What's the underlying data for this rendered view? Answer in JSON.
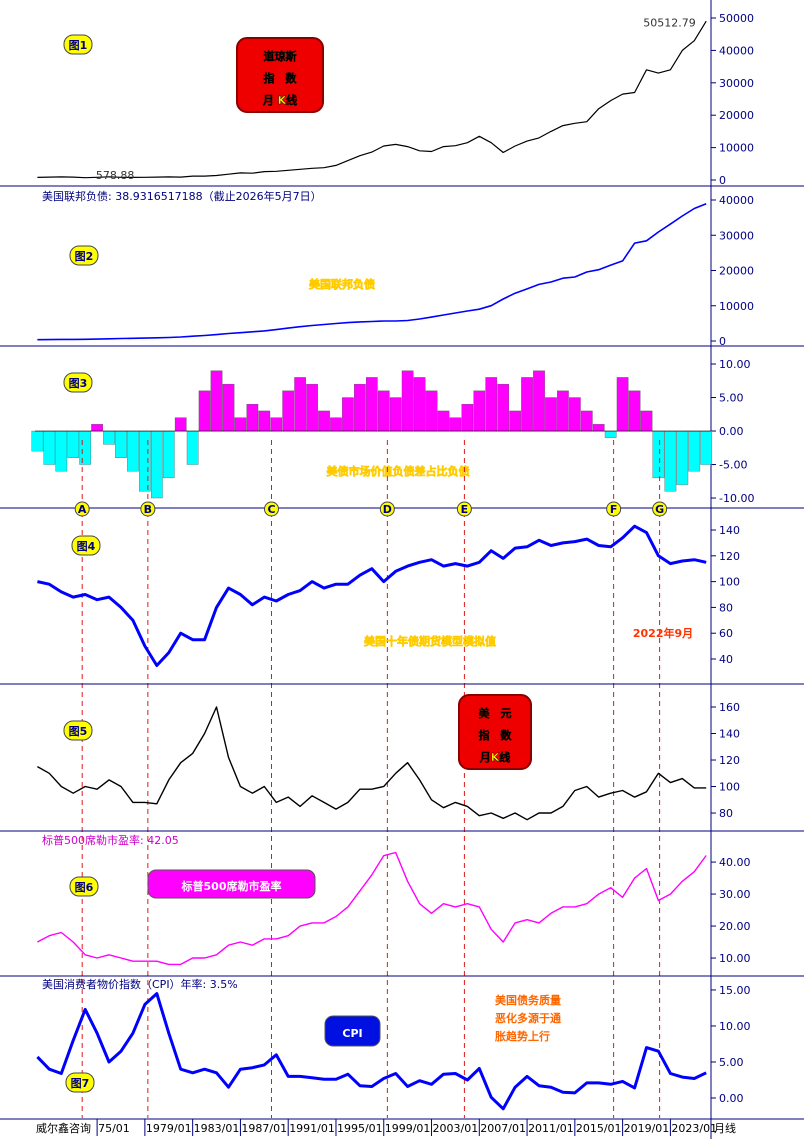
{
  "chart_data": [
    {
      "type": "line",
      "label": "图1",
      "box_lines": [
        "道琼斯",
        "指　数",
        "月 K线"
      ],
      "annotations": [
        {
          "text": "50512.79",
          "x": 2026.3,
          "y": 50512.79
        },
        {
          "text": "578.88",
          "x": 1974.9,
          "y": 578.88
        }
      ],
      "x": [
        1970,
        1971,
        1972,
        1973,
        1974,
        1975,
        1976,
        1977,
        1978,
        1979,
        1980,
        1981,
        1982,
        1983,
        1984,
        1985,
        1986,
        1987,
        1988,
        1989,
        1990,
        1991,
        1992,
        1993,
        1994,
        1995,
        1996,
        1997,
        1998,
        1999,
        2000,
        2001,
        2002,
        2003,
        2004,
        2005,
        2006,
        2007,
        2008,
        2009,
        2010,
        2011,
        2012,
        2013,
        2014,
        2015,
        2016,
        2017,
        2018,
        2019,
        2020,
        2021,
        2022,
        2023,
        2024,
        2025,
        2026
      ],
      "values": [
        800,
        890,
        950,
        900,
        700,
        850,
        980,
        850,
        820,
        840,
        900,
        950,
        900,
        1200,
        1200,
        1400,
        1800,
        2200,
        2100,
        2600,
        2700,
        3000,
        3300,
        3600,
        3800,
        4500,
        6000,
        7500,
        8600,
        10500,
        11000,
        10300,
        9000,
        8800,
        10300,
        10600,
        11500,
        13500,
        11500,
        8500,
        10500,
        12000,
        13000,
        15000,
        16800,
        17500,
        18000,
        22000,
        24500,
        26500,
        27000,
        34000,
        33000,
        34000,
        40000,
        43000,
        49000
      ],
      "color": "#000000",
      "line_width": 1.2,
      "xlim": [
        1969.8,
        2026.4
      ],
      "ylim": [
        -1540,
        54320
      ],
      "yticks": [
        0,
        10000,
        20000,
        30000,
        40000,
        50000
      ]
    },
    {
      "type": "line",
      "label": "图2",
      "subtitle": "美国联邦负债: 38.9316517188（截止2026年5月7日）",
      "note": "美国联邦负债",
      "x": [
        1970,
        1971,
        1972,
        1973,
        1974,
        1975,
        1976,
        1977,
        1978,
        1979,
        1980,
        1981,
        1982,
        1983,
        1984,
        1985,
        1986,
        1987,
        1988,
        1989,
        1990,
        1991,
        1992,
        1993,
        1994,
        1995,
        1996,
        1997,
        1998,
        1999,
        2000,
        2001,
        2002,
        2003,
        2004,
        2005,
        2006,
        2007,
        2008,
        2009,
        2010,
        2011,
        2012,
        2013,
        2014,
        2015,
        2016,
        2017,
        2018,
        2019,
        2020,
        2021,
        2022,
        2023,
        2024,
        2025,
        2026
      ],
      "values": [
        380,
        410,
        440,
        460,
        480,
        540,
        630,
        700,
        770,
        830,
        910,
        1000,
        1140,
        1370,
        1560,
        1820,
        2120,
        2350,
        2600,
        2860,
        3230,
        3660,
        4060,
        4410,
        4690,
        4970,
        5220,
        5410,
        5530,
        5660,
        5670,
        5810,
        6230,
        6780,
        7380,
        7930,
        8510,
        9010,
        10020,
        11910,
        13560,
        14790,
        16070,
        16740,
        17820,
        18150,
        19570,
        20240,
        21520,
        22720,
        27750,
        28430,
        30930,
        33170,
        35460,
        37600,
        38930
      ],
      "color": "#0000ff",
      "line_width": 1.6,
      "xlim": [
        1969.8,
        2026.4
      ],
      "ylim": [
        -1135,
        43690
      ],
      "yticks": [
        0,
        10000,
        20000,
        30000,
        40000
      ]
    },
    {
      "type": "bar",
      "label": "图3",
      "note": "美债市场价值负债差占比负债",
      "x": [
        1970,
        1971,
        1972,
        1973,
        1974,
        1975,
        1976,
        1977,
        1978,
        1979,
        1980,
        1981,
        1982,
        1983,
        1984,
        1985,
        1986,
        1987,
        1988,
        1989,
        1990,
        1991,
        1992,
        1993,
        1994,
        1995,
        1996,
        1997,
        1998,
        1999,
        2000,
        2001,
        2002,
        2003,
        2004,
        2005,
        2006,
        2007,
        2008,
        2009,
        2010,
        2011,
        2012,
        2013,
        2014,
        2015,
        2016,
        2017,
        2018,
        2019,
        2020,
        2021,
        2022,
        2023,
        2024,
        2025,
        2026
      ],
      "values": [
        -3,
        -5,
        -6,
        -4,
        -5,
        1,
        -2,
        -4,
        -6,
        -9,
        -10,
        -7,
        2,
        -5,
        6,
        9,
        7,
        2,
        4,
        3,
        2,
        6,
        8,
        7,
        3,
        2,
        5,
        7,
        8,
        6,
        5,
        9,
        8,
        6,
        3,
        2,
        4,
        6,
        8,
        7,
        3,
        8,
        9,
        5,
        6,
        5,
        3,
        1,
        -1,
        8,
        6,
        3,
        -7,
        -9,
        -8,
        -6,
        -5
      ],
      "positive_color": "#ff00ff",
      "negative_color": "#00ffff",
      "markers": [
        {
          "label": "A",
          "x": 1973.75
        },
        {
          "label": "B",
          "x": 1979.25
        },
        {
          "label": "C",
          "x": 1989.6
        },
        {
          "label": "D",
          "x": 1999.3
        },
        {
          "label": "E",
          "x": 2005.75
        },
        {
          "label": "F",
          "x": 2018.25
        },
        {
          "label": "G",
          "x": 2022.1
        }
      ],
      "xlim": [
        1969.8,
        2026.4
      ],
      "ylim": [
        -11.34,
        12.54
      ],
      "yticks": [
        {
          "value": -10,
          "label": "-10.00"
        },
        {
          "value": -5,
          "label": "-5.00"
        },
        {
          "value": 0,
          "label": "0.00"
        },
        {
          "value": 5,
          "label": "5.00"
        },
        {
          "value": 10,
          "label": "10.00"
        }
      ]
    },
    {
      "type": "line",
      "label": "图4",
      "note": "美国十年债期货模型模拟值",
      "note2": "2022年9月",
      "x": [
        1970,
        1971,
        1972,
        1973,
        1974,
        1975,
        1976,
        1977,
        1978,
        1979,
        1980,
        1981,
        1982,
        1983,
        1984,
        1985,
        1986,
        1987,
        1988,
        1989,
        1990,
        1991,
        1992,
        1993,
        1994,
        1995,
        1996,
        1997,
        1998,
        1999,
        2000,
        2001,
        2002,
        2003,
        2004,
        2005,
        2006,
        2007,
        2008,
        2009,
        2010,
        2011,
        2012,
        2013,
        2014,
        2015,
        2016,
        2017,
        2018,
        2019,
        2020,
        2021,
        2022,
        2023,
        2024,
        2025,
        2026
      ],
      "values": [
        100,
        98,
        92,
        88,
        90,
        86,
        88,
        80,
        70,
        50,
        35,
        45,
        60,
        55,
        55,
        80,
        95,
        90,
        82,
        88,
        85,
        90,
        93,
        100,
        95,
        98,
        98,
        105,
        110,
        100,
        108,
        112,
        115,
        117,
        112,
        114,
        112,
        115,
        124,
        118,
        126,
        127,
        132,
        128,
        130,
        131,
        133,
        128,
        127,
        134,
        143,
        138,
        120,
        114,
        116,
        117,
        115
      ],
      "color": "#0000ff",
      "line_width": 3,
      "xlim": [
        1969.8,
        2026.4
      ],
      "ylim": [
        21.4,
        156.3
      ],
      "yticks": [
        40,
        60,
        80,
        100,
        120,
        140
      ]
    },
    {
      "type": "line",
      "label": "图5",
      "box_lines": [
        "美　元",
        "指　数",
        "月K线"
      ],
      "x": [
        1970,
        1971,
        1972,
        1973,
        1974,
        1975,
        1976,
        1977,
        1978,
        1979,
        1980,
        1981,
        1982,
        1983,
        1984,
        1985,
        1986,
        1987,
        1988,
        1989,
        1990,
        1991,
        1992,
        1993,
        1994,
        1995,
        1996,
        1997,
        1998,
        1999,
        2000,
        2001,
        2002,
        2003,
        2004,
        2005,
        2006,
        2007,
        2008,
        2009,
        2010,
        2011,
        2012,
        2013,
        2014,
        2015,
        2016,
        2017,
        2018,
        2019,
        2020,
        2021,
        2022,
        2023,
        2024,
        2025,
        2026
      ],
      "values": [
        115,
        110,
        100,
        95,
        100,
        98,
        105,
        100,
        88,
        88,
        87,
        105,
        118,
        125,
        140,
        160,
        122,
        100,
        95,
        100,
        88,
        92,
        85,
        93,
        88,
        83,
        88,
        98,
        98,
        100,
        110,
        118,
        105,
        90,
        84,
        88,
        85,
        78,
        80,
        76,
        80,
        75,
        80,
        80,
        85,
        97,
        100,
        92,
        95,
        97,
        92,
        96,
        110,
        103,
        106,
        99,
        99
      ],
      "color": "#000000",
      "line_width": 1.4,
      "xlim": [
        1969.8,
        2026.4
      ],
      "ylim": [
        67.2,
        176.6
      ],
      "yticks": [
        80,
        100,
        120,
        140,
        160
      ]
    },
    {
      "type": "line",
      "label": "图6",
      "subtitle": "标普500席勒市盈率: 42.05",
      "box_text": "标普500席勒市盈率",
      "x": [
        1970,
        1971,
        1972,
        1973,
        1974,
        1975,
        1976,
        1977,
        1978,
        1979,
        1980,
        1981,
        1982,
        1983,
        1984,
        1985,
        1986,
        1987,
        1988,
        1989,
        1990,
        1991,
        1992,
        1993,
        1994,
        1995,
        1996,
        1997,
        1998,
        1999,
        2000,
        2001,
        2002,
        2003,
        2004,
        2005,
        2006,
        2007,
        2008,
        2009,
        2010,
        2011,
        2012,
        2013,
        2014,
        2015,
        2016,
        2017,
        2018,
        2019,
        2020,
        2021,
        2022,
        2023,
        2024,
        2025,
        2026
      ],
      "values": [
        15,
        17,
        18,
        15,
        11,
        10,
        11,
        10,
        9,
        9,
        9,
        8,
        8,
        10,
        10,
        11,
        14,
        15,
        14,
        16,
        16,
        17,
        20,
        21,
        21,
        23,
        26,
        31,
        36,
        42,
        43,
        34,
        27,
        24,
        27,
        26,
        27,
        26,
        19,
        15,
        21,
        22,
        21,
        24,
        26,
        26,
        27,
        30,
        32,
        29,
        35,
        38,
        28,
        30,
        34,
        37,
        42.05
      ],
      "color": "#ff00ff",
      "line_width": 1.4,
      "xlim": [
        1969.8,
        2026.4
      ],
      "ylim": [
        4.7,
        49.4
      ],
      "yticks": [
        {
          "value": 10,
          "label": "10.00"
        },
        {
          "value": 20,
          "label": "20.00"
        },
        {
          "value": 30,
          "label": "30.00"
        },
        {
          "value": 40,
          "label": "40.00"
        }
      ]
    },
    {
      "type": "line",
      "label": "图7",
      "subtitle": "美国消费者物价指数（CPI）年率: 3.5%",
      "box_text": "CPI",
      "note_lines": [
        "美国债务质量",
        "恶化多源于通",
        "胀趋势上行"
      ],
      "source": "威尔鑫咨询",
      "period": "月线",
      "x": [
        1970,
        1971,
        1972,
        1973,
        1974,
        1975,
        1976,
        1977,
        1978,
        1979,
        1980,
        1981,
        1982,
        1983,
        1984,
        1985,
        1986,
        1987,
        1988,
        1989,
        1990,
        1991,
        1992,
        1993,
        1994,
        1995,
        1996,
        1997,
        1998,
        1999,
        2000,
        2001,
        2002,
        2003,
        2004,
        2005,
        2006,
        2007,
        2008,
        2009,
        2010,
        2011,
        2012,
        2013,
        2014,
        2015,
        2016,
        2017,
        2018,
        2019,
        2020,
        2021,
        2022,
        2023,
        2024,
        2025,
        2026
      ],
      "values": [
        5.7,
        4,
        3.4,
        8,
        12.3,
        9,
        5,
        6.5,
        9,
        13,
        14.5,
        9,
        4,
        3.5,
        4,
        3.5,
        1.5,
        4,
        4.2,
        4.6,
        6,
        3,
        3,
        2.8,
        2.6,
        2.6,
        3.3,
        1.7,
        1.6,
        2.7,
        3.4,
        1.6,
        2.4,
        1.9,
        3.3,
        3.4,
        2.5,
        4.1,
        0.1,
        -1.5,
        1.5,
        3,
        1.7,
        1.5,
        0.8,
        0.7,
        2.1,
        2.1,
        1.9,
        2.3,
        1.4,
        7,
        6.5,
        3.4,
        2.9,
        2.7,
        3.5
      ],
      "color": "#0000ff",
      "line_width": 3,
      "xlim": [
        1969.8,
        2026.4
      ],
      "ylim": [
        -2.78,
        16.8
      ],
      "yticks": [
        {
          "value": 0,
          "label": "0.00"
        },
        {
          "value": 5,
          "label": "5.00"
        },
        {
          "value": 10,
          "label": "10.00"
        },
        {
          "value": 15,
          "label": "15.00"
        }
      ],
      "xticks": [
        {
          "value": 1975,
          "label": "75/01"
        },
        {
          "value": 1979,
          "label": "1979/01"
        },
        {
          "value": 1983,
          "label": "1983/01"
        },
        {
          "value": 1987,
          "label": "1987/01"
        },
        {
          "value": 1991,
          "label": "1991/01"
        },
        {
          "value": 1995,
          "label": "1995/01"
        },
        {
          "value": 1999,
          "label": "1999/01"
        },
        {
          "value": 2003,
          "label": "2003/01"
        },
        {
          "value": 2007,
          "label": "2007/01"
        },
        {
          "value": 2011,
          "label": "2011/01"
        },
        {
          "value": 2015,
          "label": "2015/01"
        },
        {
          "value": 2019,
          "label": "2019/01"
        },
        {
          "value": 2023,
          "label": "2023/01"
        }
      ]
    }
  ]
}
